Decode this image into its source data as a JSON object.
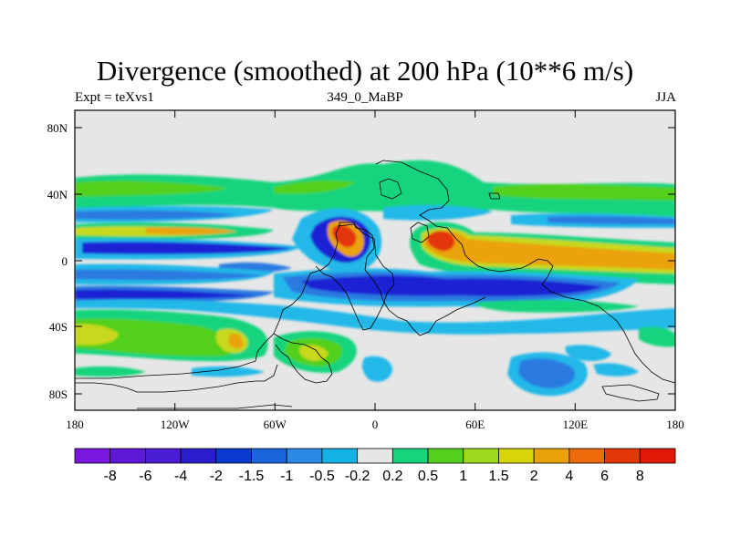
{
  "title": "Divergence (smoothed) at 200 hPa (10**6 m/s)",
  "left_label": "Expt = teXvs1",
  "center_label": "349_0_MaBP",
  "right_label": "JJA",
  "lat_ticks": [
    "80N",
    "40N",
    "0",
    "40S",
    "80S"
  ],
  "lon_ticks": [
    "180",
    "120W",
    "60W",
    "0",
    "60E",
    "120E",
    "180"
  ],
  "colorbar": {
    "colors": [
      "#7b18e0",
      "#6018d8",
      "#4a1cd2",
      "#2a1ecc",
      "#0a3ad0",
      "#1a64dc",
      "#2a8ae6",
      "#14b2e6",
      "#e6e6e6",
      "#16d47e",
      "#52d01c",
      "#9ed81c",
      "#d8d40c",
      "#eaa20c",
      "#ec6a0a",
      "#e43608",
      "#e01808"
    ],
    "labels": [
      "-8",
      "-6",
      "-4",
      "-2",
      "-1.5",
      "-1",
      "-0.5",
      "-0.2",
      "0.2",
      "0.5",
      "1",
      "1.5",
      "2",
      "4",
      "6",
      "8"
    ]
  },
  "colors": {
    "land_neutral": "#e6e6e6",
    "strong_neg": "#1a24d4",
    "mid_neg": "#2a7ae0",
    "weak_neg": "#22b8e8",
    "weak_pos": "#16d47e",
    "mid_pos": "#52d01c",
    "pos_yellow": "#c8d81a",
    "strong_pos": "#eaa20c",
    "max_pos": "#e43608"
  }
}
